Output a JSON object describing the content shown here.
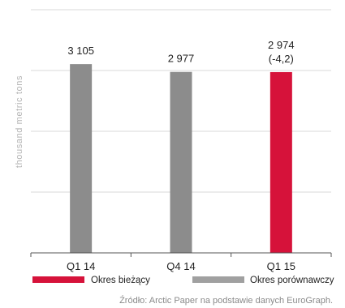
{
  "chart_data": {
    "type": "bar",
    "title": "",
    "xlabel": "",
    "ylabel": "thousand metric tons",
    "ylim": [
      0,
      4000
    ],
    "grid": true,
    "categories": [
      "Q1 14",
      "Q4 14",
      "Q1 15"
    ],
    "values": [
      3105,
      2977,
      2974
    ],
    "data_labels": [
      [
        "3 105"
      ],
      [
        "2 977"
      ],
      [
        "2 974",
        "(-4,2)"
      ]
    ],
    "bar_colors": [
      "#8c8c8c",
      "#8c8c8c",
      "#d6123a"
    ],
    "legend": {
      "placement": "bottom",
      "items": [
        {
          "label": "Okres bieżący",
          "color": "#d6123a"
        },
        {
          "label": "Okres porównawczy",
          "color": "#a0a0a0"
        }
      ]
    },
    "source": "Źródło: Arctic Paper na podstawie danych EuroGraph."
  }
}
